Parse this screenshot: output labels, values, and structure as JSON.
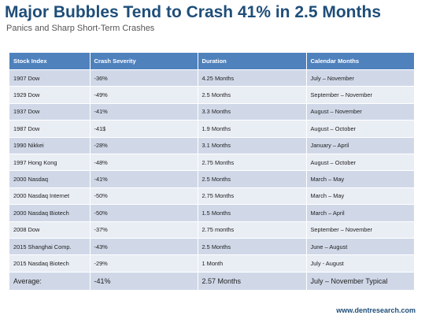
{
  "title": "Major Bubbles Tend to Crash 41% in 2.5 Months",
  "subtitle": "Panics and Sharp Short-Term Crashes",
  "table": {
    "headers": [
      "Stock Index",
      "Crash Severity",
      "Duration",
      "Calendar Months"
    ],
    "rows": [
      [
        "1907 Dow",
        "-36%",
        "4.25 Months",
        "July – November"
      ],
      [
        "1929 Dow",
        "-49%",
        "2.5 Months",
        "September – November"
      ],
      [
        "1937 Dow",
        "-41%",
        "3.3 Months",
        "August – November"
      ],
      [
        "1987 Dow",
        "-41$",
        "1.9 Months",
        "August – October"
      ],
      [
        "1990 Nikkei",
        "-28%",
        "3.1 Months",
        "January – April"
      ],
      [
        "1997 Hong Kong",
        "-48%",
        "2.75 Months",
        "August – October"
      ],
      [
        "2000 Nasdaq",
        "-41%",
        "2.5 Months",
        "March – May"
      ],
      [
        "2000 Nasdaq Internet",
        "-50%",
        "2.75 Months",
        "March – May"
      ],
      [
        "2000 Nasdaq Biotech",
        "-50%",
        "1.5 Months",
        "March – April"
      ],
      [
        "2008 Dow",
        "-37%",
        "2.75 months",
        "September – November"
      ],
      [
        "2015 Shanghai Comp.",
        "-43%",
        "2.5 Months",
        "June – August"
      ],
      [
        "2015 Nasdaq Biotech",
        "-29%",
        "1 Month",
        "July - August"
      ]
    ],
    "average": [
      "Average:",
      "-41%",
      "2.57 Months",
      "July – November Typical"
    ]
  },
  "footer_url": "www.dentresearch.com",
  "colors": {
    "title": "#1f4e79",
    "header_bg": "#4f81bd",
    "row_odd": "#d0d8e8",
    "row_even": "#e9edf4"
  }
}
